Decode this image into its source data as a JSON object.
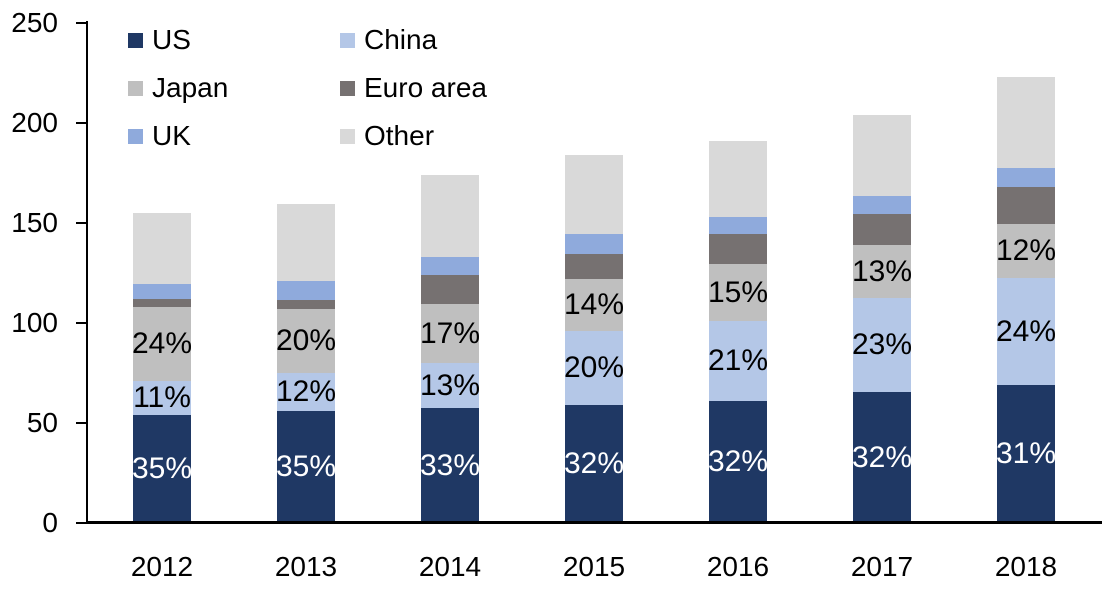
{
  "chart_data": {
    "type": "bar",
    "variant": "stacked-column",
    "title": "",
    "categories": [
      "2012",
      "2013",
      "2014",
      "2015",
      "2016",
      "2017",
      "2018"
    ],
    "series": [
      {
        "name": "US",
        "color": "#1F3864",
        "values": [
          54,
          56,
          57.5,
          59,
          61,
          65.5,
          69
        ],
        "segment_labels": [
          "35%",
          "35%",
          "33%",
          "32%",
          "32%",
          "32%",
          "31%"
        ],
        "label_color": "#FFFFFF"
      },
      {
        "name": "China",
        "color": "#B4C7E7",
        "values": [
          17,
          19,
          22.5,
          37,
          40,
          47,
          53.5
        ],
        "segment_labels": [
          "11%",
          "12%",
          "13%",
          "20%",
          "21%",
          "23%",
          "24%"
        ],
        "label_color": "#000000"
      },
      {
        "name": "Japan",
        "color": "#BFBFBF",
        "values": [
          37,
          32,
          29.5,
          26,
          28.5,
          26.5,
          27
        ],
        "segment_labels": [
          "24%",
          "20%",
          "17%",
          "14%",
          "15%",
          "13%",
          "12%"
        ],
        "label_color": "#000000"
      },
      {
        "name": "Euro area",
        "color": "#767171",
        "values": [
          4,
          4.5,
          14.5,
          12.5,
          15,
          15.5,
          18.5
        ],
        "segment_labels": null,
        "label_color": null
      },
      {
        "name": "UK",
        "color": "#8FAADC",
        "values": [
          7.5,
          9.5,
          9,
          10,
          8.5,
          9,
          9.5
        ],
        "segment_labels": null,
        "label_color": null
      },
      {
        "name": "Other",
        "color": "#D9D9D9",
        "values": [
          35.5,
          38.5,
          41,
          39.5,
          38,
          40.5,
          45.5
        ],
        "segment_labels": null,
        "label_color": null
      }
    ],
    "totals_estimated": [
      155,
      159.5,
      174,
      184,
      191,
      204,
      223
    ],
    "y_axis": {
      "min": 0,
      "max": 250,
      "tick_interval": 50,
      "ticks": [
        0,
        50,
        100,
        150,
        200,
        250
      ]
    },
    "x_axis": {
      "labels": [
        "2012",
        "2013",
        "2014",
        "2015",
        "2016",
        "2017",
        "2018"
      ]
    },
    "legend": {
      "position": "top-left",
      "columns": 2,
      "items": [
        "US",
        "China",
        "Japan",
        "Euro area",
        "UK",
        "Other"
      ]
    },
    "grid": false,
    "axis_color": "#000000",
    "background": "#FFFFFF"
  }
}
